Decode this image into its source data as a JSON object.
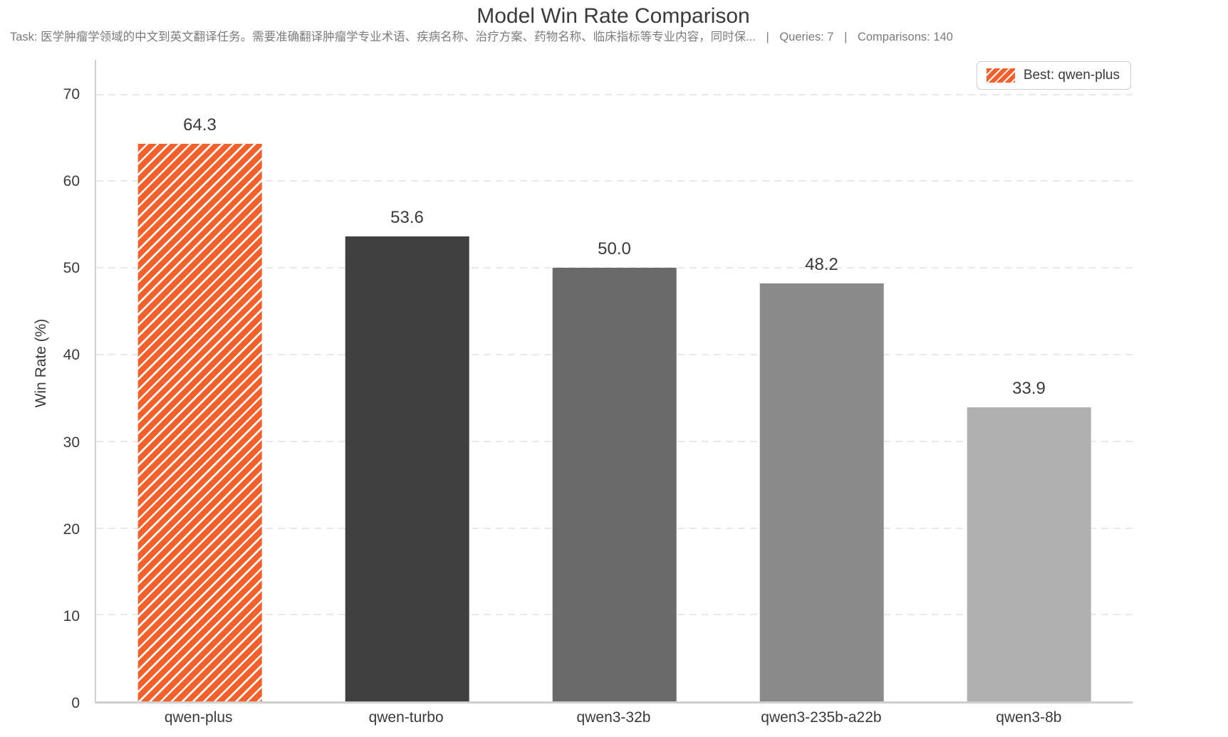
{
  "header": {
    "title": "Model Win Rate Comparison",
    "subtitle": {
      "task": "Task: 医学肿瘤学领域的中文到英文翻译任务。需要准确翻译肿瘤学专业术语、疾病名称、治疗方案、药物名称、临床指标等专业内容，同时保...",
      "separator": "|",
      "queries": "Queries: 7",
      "comparisons": "Comparisons: 140"
    }
  },
  "chart_data": {
    "type": "bar",
    "title": "Model Win Rate Comparison",
    "xlabel": "",
    "ylabel": "Win Rate (%)",
    "categories": [
      "qwen-plus",
      "qwen-turbo",
      "qwen3-32b",
      "qwen3-235b-a22b",
      "qwen3-8b"
    ],
    "values": [
      64.3,
      53.6,
      50.0,
      48.2,
      33.9
    ],
    "value_labels": [
      "64.3",
      "53.6",
      "50.0",
      "48.2",
      "33.9"
    ],
    "bar_colors": [
      "#F4602B",
      "#404040",
      "#6A6A6A",
      "#8A8A8A",
      "#B0B0B0"
    ],
    "best_index": 0,
    "hatch": {
      "pattern": "diagonal-stripes",
      "stripe_color": "#FFFFFF"
    },
    "ylim": [
      0,
      74
    ],
    "yticks": [
      0,
      10,
      20,
      30,
      40,
      50,
      60,
      70
    ],
    "grid": {
      "axis": "y",
      "style": "dashed",
      "color": "#E9E9E9"
    },
    "legend": {
      "label": "Best: qwen-plus",
      "position": "upper-right",
      "swatch_color": "#F4602B"
    }
  },
  "colors": {
    "accent_orange": "#F4602B",
    "title_text": "#3A3A3A",
    "subtitle_text": "#7B7B7B",
    "spine": "#CFCFCF"
  }
}
